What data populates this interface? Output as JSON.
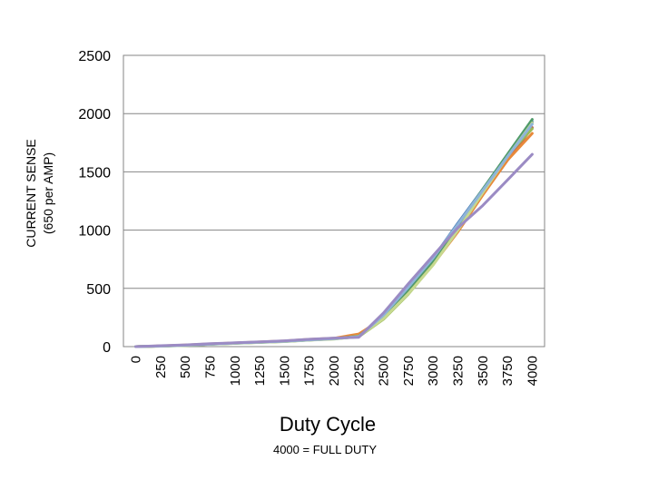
{
  "chart_data": {
    "type": "line",
    "x": [
      0,
      250,
      500,
      750,
      1000,
      1250,
      1500,
      1750,
      2000,
      2250,
      2500,
      2750,
      3000,
      3250,
      3500,
      3750,
      4000
    ],
    "x_tick_labels": [
      "0",
      "250",
      "500",
      "750",
      "1000",
      "1250",
      "1500",
      "1750",
      "2000",
      "2250",
      "2500",
      "2750",
      "3000",
      "3250",
      "3500",
      "3750",
      "4000"
    ],
    "y_tick_labels": [
      "0",
      "500",
      "1000",
      "1500",
      "2000",
      "2500"
    ],
    "ylim": [
      0,
      2500
    ],
    "xlabel": "Duty Cycle",
    "ylabel_lines": [
      "CURRENT SENSE",
      "(650 per AMP)"
    ],
    "note": "4000 = FULL DUTY",
    "grid": "horizontal",
    "legend": "none",
    "series": [
      {
        "color": "#4f81bd",
        "values": [
          0,
          5,
          12,
          22,
          30,
          38,
          45,
          58,
          68,
          95,
          260,
          500,
          760,
          1060,
          1350,
          1640,
          1930
        ]
      },
      {
        "color": "#c0504d",
        "values": [
          0,
          5,
          12,
          22,
          30,
          38,
          46,
          60,
          70,
          100,
          250,
          470,
          720,
          1010,
          1310,
          1600,
          1880
        ]
      },
      {
        "color": "#e8893a",
        "values": [
          0,
          6,
          13,
          23,
          31,
          40,
          48,
          62,
          72,
          108,
          245,
          460,
          705,
          985,
          1300,
          1600,
          1830
        ]
      },
      {
        "color": "#9bbb59",
        "values": [
          0,
          4,
          10,
          20,
          28,
          36,
          44,
          56,
          66,
          85,
          235,
          450,
          705,
          1000,
          1330,
          1640,
          1870
        ]
      },
      {
        "color": "#4e9a6a",
        "values": [
          0,
          5,
          11,
          21,
          29,
          37,
          45,
          57,
          67,
          90,
          255,
          490,
          740,
          1040,
          1350,
          1650,
          1950
        ]
      },
      {
        "color": "#c6d98f",
        "values": [
          0,
          4,
          10,
          20,
          28,
          36,
          43,
          55,
          65,
          88,
          240,
          455,
          700,
          1000,
          1320,
          1630,
          1920
        ]
      },
      {
        "color": "#8fb4d9",
        "values": [
          0,
          5,
          12,
          22,
          30,
          38,
          46,
          58,
          68,
          85,
          270,
          510,
          760,
          1050,
          1340,
          1630,
          1910
        ]
      },
      {
        "color": "#9b8bc4",
        "values": [
          0,
          8,
          15,
          25,
          33,
          41,
          50,
          63,
          73,
          80,
          290,
          540,
          780,
          1020,
          1210,
          1430,
          1650
        ]
      }
    ]
  }
}
